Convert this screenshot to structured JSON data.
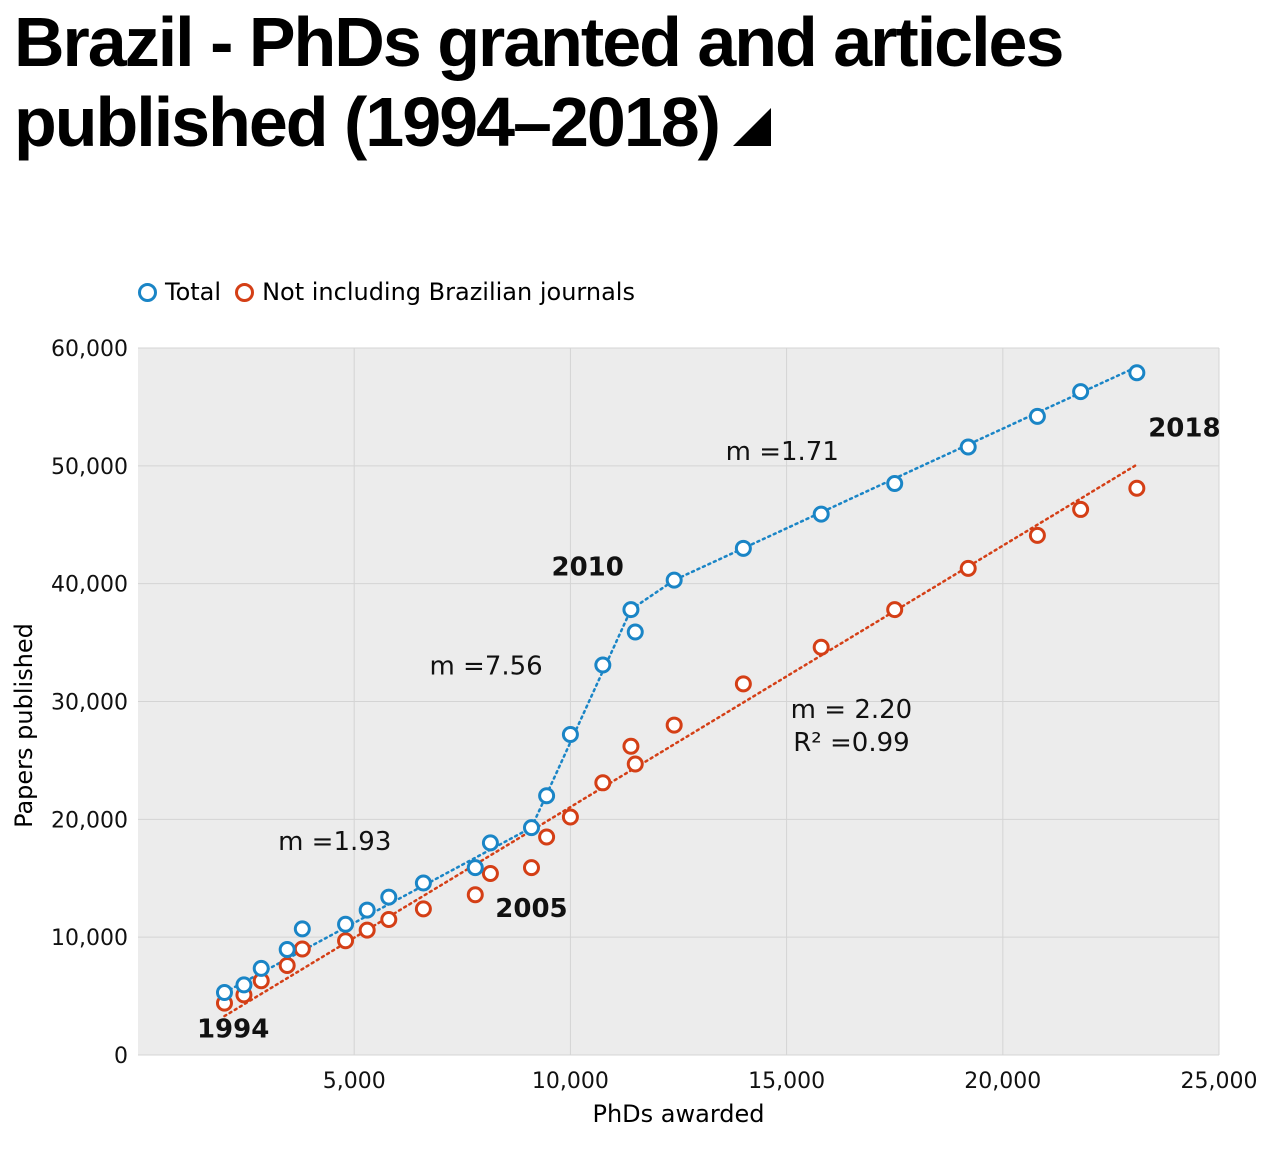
{
  "title": "Brazil - PhDs granted and articles published (1994–2018)",
  "colors": {
    "total": "#1a85c6",
    "not_brazilian": "#d43f16",
    "plot_bg": "#ececec",
    "grid": "#d4d4d4"
  },
  "legend": [
    {
      "label": "Total",
      "color": "#1a85c6"
    },
    {
      "label": "Not including Brazilian journals",
      "color": "#d43f16"
    }
  ],
  "chart_data": {
    "type": "scatter",
    "xlabel": "PhDs awarded",
    "ylabel": "Papers published",
    "xlim": [
      0,
      25000
    ],
    "ylim": [
      0,
      60000
    ],
    "xticks": [
      5000,
      10000,
      15000,
      20000,
      25000
    ],
    "yticks": [
      0,
      10000,
      20000,
      30000,
      40000,
      50000,
      60000
    ],
    "xtick_labels": [
      "5,000",
      "10,000",
      "15,000",
      "20,000",
      "25,000"
    ],
    "ytick_labels": [
      "0",
      "10,000",
      "20,000",
      "30,000",
      "40,000",
      "50,000",
      "60,000"
    ],
    "grid": true,
    "legend_position": "top-left",
    "series": [
      {
        "name": "Total",
        "color": "#1a85c6",
        "points": [
          [
            2000,
            5300
          ],
          [
            2450,
            5950
          ],
          [
            2850,
            7350
          ],
          [
            3450,
            8950
          ],
          [
            3800,
            10700
          ],
          [
            4800,
            11100
          ],
          [
            5300,
            12300
          ],
          [
            5800,
            13400
          ],
          [
            6600,
            14600
          ],
          [
            7800,
            15900
          ],
          [
            8150,
            18000
          ],
          [
            9100,
            19300
          ],
          [
            9450,
            22000
          ],
          [
            10000,
            27200
          ],
          [
            10750,
            33100
          ],
          [
            11400,
            37800
          ],
          [
            11500,
            35900
          ],
          [
            12400,
            40300
          ],
          [
            14000,
            43000
          ],
          [
            15800,
            45900
          ],
          [
            17500,
            48500
          ],
          [
            19200,
            51600
          ],
          [
            20800,
            54200
          ],
          [
            21800,
            56300
          ],
          [
            23100,
            57900
          ]
        ]
      },
      {
        "name": "Not including Brazilian journals",
        "color": "#d43f16",
        "points": [
          [
            2000,
            4400
          ],
          [
            2450,
            5100
          ],
          [
            2850,
            6300
          ],
          [
            3450,
            7600
          ],
          [
            3800,
            9000
          ],
          [
            4800,
            9700
          ],
          [
            5300,
            10600
          ],
          [
            5800,
            11500
          ],
          [
            6600,
            12400
          ],
          [
            7800,
            13600
          ],
          [
            8150,
            15400
          ],
          [
            9100,
            15900
          ],
          [
            9450,
            18500
          ],
          [
            10000,
            20200
          ],
          [
            10750,
            23100
          ],
          [
            11400,
            26200
          ],
          [
            11500,
            24700
          ],
          [
            12400,
            28000
          ],
          [
            14000,
            31500
          ],
          [
            15800,
            34600
          ],
          [
            17500,
            37800
          ],
          [
            19200,
            41300
          ],
          [
            20800,
            44100
          ],
          [
            21800,
            46300
          ],
          [
            23100,
            48100
          ]
        ]
      }
    ],
    "trend_lines": [
      {
        "series": "Total",
        "points": [
          [
            2000,
            5300
          ],
          [
            9100,
            19300
          ]
        ]
      },
      {
        "series": "Total",
        "points": [
          [
            9100,
            19300
          ],
          [
            11400,
            37800
          ]
        ]
      },
      {
        "series": "Total",
        "points": [
          [
            11400,
            37800
          ],
          [
            12400,
            40300
          ],
          [
            23100,
            58400
          ]
        ]
      },
      {
        "series": "Not including Brazilian journals",
        "points": [
          [
            2000,
            3300
          ],
          [
            23100,
            50100
          ]
        ]
      }
    ],
    "annotations": [
      {
        "text": "m =1.93",
        "x": 4550,
        "y": 17400,
        "bold": false
      },
      {
        "text": "m =7.56",
        "x": 8050,
        "y": 32300,
        "bold": false
      },
      {
        "text": "m =1.71",
        "x": 14900,
        "y": 50500,
        "bold": false
      },
      {
        "text": "m = 2.20",
        "x": 16500,
        "y": 28600,
        "bold": false
      },
      {
        "text": "R² =0.99",
        "x": 16500,
        "y": 25800,
        "bold": false
      },
      {
        "text": "1994",
        "x": 2200,
        "y": 1500,
        "bold": true
      },
      {
        "text": "2005",
        "x": 9100,
        "y": 11700,
        "bold": true
      },
      {
        "text": "2010",
        "x": 10400,
        "y": 40700,
        "bold": true
      },
      {
        "text": "2018",
        "x": 24200,
        "y": 52500,
        "bold": true
      }
    ]
  }
}
